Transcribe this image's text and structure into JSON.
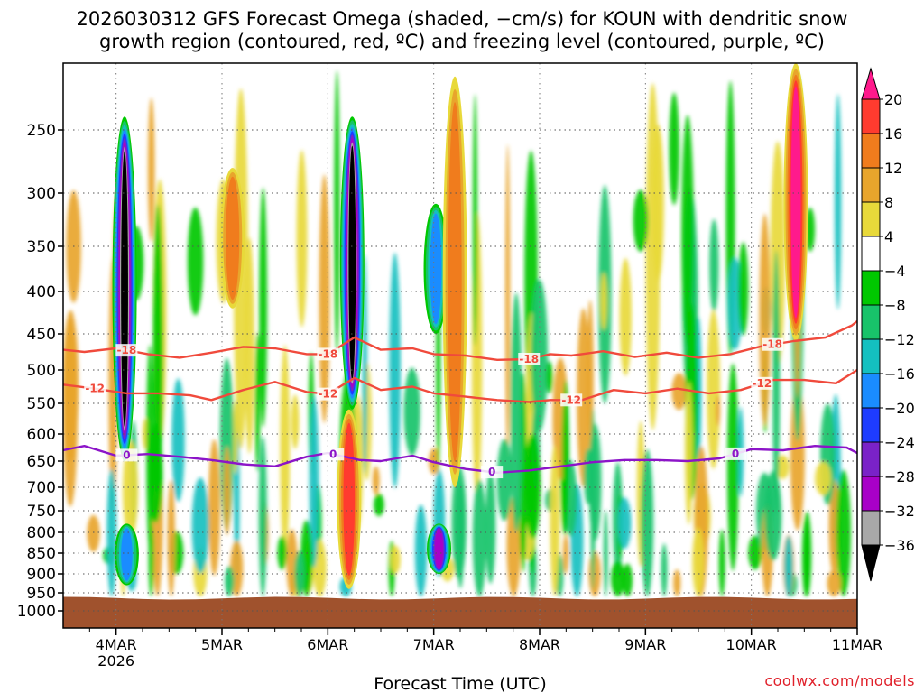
{
  "chart_data": {
    "type": "heatmap",
    "title_lines": [
      "2026030312 GFS Forecast Omega (shaded, −cm/s) for KOUN with dendritic snow",
      "growth region (contoured, red, ºC) and freezing level (contoured, purple, ºC)"
    ],
    "xlabel": "Forecast Time (UTC)",
    "ylabel": "",
    "credit": "coolwx.com/models",
    "x_ticks": [
      {
        "day": 4,
        "label": "4MAR",
        "sub": "2026"
      },
      {
        "day": 5,
        "label": "5MAR",
        "sub": ""
      },
      {
        "day": 6,
        "label": "6MAR",
        "sub": ""
      },
      {
        "day": 7,
        "label": "7MAR",
        "sub": ""
      },
      {
        "day": 8,
        "label": "8MAR",
        "sub": ""
      },
      {
        "day": 9,
        "label": "9MAR",
        "sub": ""
      },
      {
        "day": 10,
        "label": "10MAR",
        "sub": ""
      },
      {
        "day": 11,
        "label": "11MAR",
        "sub": ""
      }
    ],
    "xlim_days": [
      3.5,
      11.0
    ],
    "y_ticks": [
      250,
      300,
      350,
      400,
      450,
      500,
      550,
      600,
      650,
      700,
      750,
      800,
      850,
      900,
      950,
      1000
    ],
    "ylim_hpa": [
      200,
      1040
    ],
    "colorbar": {
      "labels": [
        "20",
        "16",
        "12",
        "8",
        "4",
        "−4",
        "−8",
        "−12",
        "−16",
        "−20",
        "−24",
        "−28",
        "−32",
        "−36"
      ],
      "colors": [
        "#ff1a8c",
        "#ff3b2f",
        "#f07c1d",
        "#e8a52c",
        "#e8d93a",
        "#ffffff",
        "#00c800",
        "#18c36a",
        "#14c0c0",
        "#1a8cff",
        "#1e3cff",
        "#7a22c8",
        "#a800c8",
        "#a8a8a8",
        "#000000"
      ]
    },
    "omega_features": [
      {
        "day": 4.08,
        "p_top": 240,
        "p_bot": 650,
        "max": -36
      },
      {
        "day": 4.1,
        "p_top": 780,
        "p_bot": 930,
        "max": -16
      },
      {
        "day": 6.23,
        "p_top": 240,
        "p_bot": 560,
        "max": -36
      },
      {
        "day": 6.2,
        "p_top": 560,
        "p_bot": 940,
        "max": 16
      },
      {
        "day": 7.05,
        "p_top": 780,
        "p_bot": 900,
        "max": -28
      },
      {
        "day": 7.02,
        "p_top": 310,
        "p_bot": 450,
        "max": -16
      },
      {
        "day": 10.42,
        "p_top": 200,
        "p_bot": 460,
        "max": 20
      },
      {
        "day": 5.1,
        "p_top": 280,
        "p_bot": 420,
        "max": 12
      },
      {
        "day": 7.2,
        "p_top": 210,
        "p_bot": 700,
        "max": 12
      }
    ],
    "contours": [
      {
        "name": "-18C isotherm",
        "label": "-18",
        "color": "#f04a3c",
        "x": [
          3.5,
          3.7,
          4.0,
          4.3,
          4.6,
          4.9,
          5.2,
          5.5,
          5.8,
          6.0,
          6.25,
          6.5,
          6.8,
          7.0,
          7.3,
          7.6,
          7.9,
          8.1,
          8.3,
          8.6,
          8.9,
          9.2,
          9.5,
          9.8,
          10.1,
          10.4,
          10.7,
          10.95,
          11.0
        ],
        "y": [
          472,
          475,
          470,
          478,
          483,
          476,
          468,
          470,
          478,
          478,
          455,
          472,
          470,
          478,
          480,
          486,
          485,
          478,
          480,
          474,
          482,
          476,
          483,
          478,
          467,
          460,
          455,
          440,
          435
        ],
        "labels_at": [
          4.1,
          6.0,
          7.9,
          10.2
        ]
      },
      {
        "name": "-12C isotherm",
        "label": "-12",
        "color": "#f04a3c",
        "x": [
          3.5,
          3.8,
          4.1,
          4.4,
          4.7,
          4.9,
          5.2,
          5.5,
          5.8,
          6.0,
          6.25,
          6.5,
          6.8,
          7.0,
          7.3,
          7.6,
          7.9,
          8.1,
          8.4,
          8.7,
          9.0,
          9.3,
          9.6,
          9.9,
          10.2,
          10.5,
          10.8,
          11.0
        ],
        "y": [
          522,
          528,
          535,
          535,
          538,
          545,
          530,
          518,
          533,
          536,
          512,
          530,
          525,
          535,
          540,
          545,
          548,
          545,
          545,
          530,
          535,
          528,
          535,
          530,
          515,
          515,
          520,
          500
        ],
        "labels_at": [
          3.8,
          6.0,
          8.3,
          10.1
        ]
      },
      {
        "name": "0C freezing level",
        "label": "0",
        "color": "#8c14c8",
        "x": [
          3.5,
          3.7,
          4.0,
          4.3,
          4.6,
          4.9,
          5.2,
          5.5,
          5.8,
          6.0,
          6.3,
          6.5,
          6.8,
          7.0,
          7.3,
          7.6,
          7.9,
          8.2,
          8.5,
          8.8,
          9.1,
          9.4,
          9.7,
          10.0,
          10.3,
          10.6,
          10.9,
          11.0
        ],
        "y": [
          630,
          622,
          640,
          637,
          642,
          648,
          656,
          660,
          642,
          635,
          648,
          650,
          640,
          652,
          665,
          672,
          668,
          660,
          652,
          648,
          648,
          650,
          645,
          628,
          630,
          622,
          625,
          635
        ],
        "labels_at": [
          4.1,
          6.05,
          7.55,
          9.85
        ]
      }
    ],
    "ground": {
      "top_hpa": 965,
      "color": "#a0522d"
    }
  }
}
